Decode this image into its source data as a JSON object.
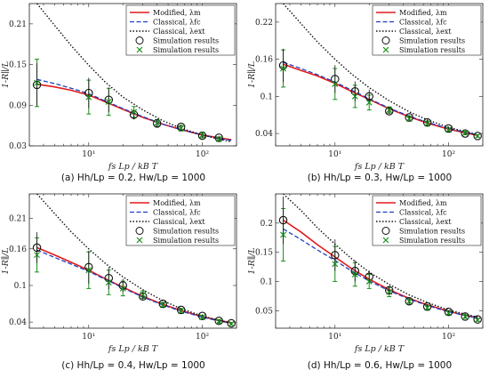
{
  "figure": {
    "legend": [
      "Modified, λm",
      "Classical, λfc",
      "Classical, λext",
      "Simulation results",
      "Simulation results"
    ],
    "colors": {
      "modified": "#e31a1c",
      "classical_fc": "#1f3fbf",
      "classical_ext": "#111111",
      "sim_black": "#111111",
      "sim_green": "#1a8f1a"
    }
  },
  "chart_data": [
    {
      "type": "line",
      "caption": "(a) Hh/Lp = 0.2, Hw/Lp = 1000",
      "xlabel": "fs Lp / kB T",
      "ylabel": "1-R∥/L",
      "xscale": "log",
      "xlim": [
        3,
        200
      ],
      "ylim": [
        0.03,
        0.24
      ],
      "xticks": [
        {
          "v": 10,
          "label": "10¹"
        },
        {
          "v": 100,
          "label": "10²"
        }
      ],
      "yticks": [
        {
          "v": 0.03,
          "label": "0.03"
        },
        {
          "v": 0.09,
          "label": "0.09"
        },
        {
          "v": 0.15,
          "label": "0.15"
        },
        {
          "v": 0.21,
          "label": "0.21"
        }
      ],
      "x": [
        3.5,
        5,
        7,
        10,
        14,
        20,
        30,
        45,
        65,
        100,
        140,
        180
      ],
      "series": [
        {
          "key": "modified",
          "values": [
            0.121,
            0.117,
            0.112,
            0.105,
            0.095,
            0.084,
            0.072,
            0.062,
            0.054,
            0.046,
            0.042,
            0.039
          ]
        },
        {
          "key": "classical_fc",
          "values": [
            0.128,
            0.122,
            0.115,
            0.107,
            0.096,
            0.085,
            0.073,
            0.062,
            0.054,
            0.046,
            0.041,
            0.038
          ]
        },
        {
          "key": "classical_ext",
          "values": [
            0.24,
            0.208,
            0.178,
            0.149,
            0.124,
            0.102,
            0.083,
            0.067,
            0.056,
            0.046,
            0.04,
            0.036
          ]
        }
      ],
      "sim": {
        "x": [
          3.5,
          10,
          15,
          25,
          40,
          65,
          100,
          140
        ],
        "circle": [
          0.12,
          0.108,
          0.098,
          0.076,
          0.063,
          0.058,
          0.045,
          0.042
        ],
        "cross": [
          0.123,
          0.102,
          0.095,
          0.08,
          0.064,
          0.056,
          0.046,
          0.04
        ],
        "err": [
          0.035,
          0.025,
          0.02,
          0.008,
          0.005,
          0.004,
          0.004,
          0.003
        ]
      }
    },
    {
      "type": "line",
      "caption": "(b) Hh/Lp = 0.3, Hw/Lp = 1000",
      "xlabel": "fs Lp / kB T",
      "ylabel": "1-R∥/L",
      "xscale": "log",
      "xlim": [
        3,
        200
      ],
      "ylim": [
        0.02,
        0.25
      ],
      "xticks": [
        {
          "v": 10,
          "label": "10¹"
        },
        {
          "v": 100,
          "label": "10²"
        }
      ],
      "yticks": [
        {
          "v": 0.04,
          "label": "0.04"
        },
        {
          "v": 0.1,
          "label": "0.1"
        },
        {
          "v": 0.16,
          "label": "0.16"
        },
        {
          "v": 0.22,
          "label": "0.22"
        }
      ],
      "x": [
        3.5,
        5,
        7,
        10,
        14,
        20,
        30,
        45,
        65,
        100,
        140,
        180
      ],
      "series": [
        {
          "key": "modified",
          "values": [
            0.152,
            0.142,
            0.133,
            0.121,
            0.108,
            0.095,
            0.08,
            0.067,
            0.057,
            0.047,
            0.041,
            0.037
          ]
        },
        {
          "key": "classical_fc",
          "values": [
            0.155,
            0.145,
            0.135,
            0.123,
            0.11,
            0.096,
            0.081,
            0.068,
            0.058,
            0.048,
            0.042,
            0.038
          ]
        },
        {
          "key": "classical_ext",
          "values": [
            0.25,
            0.218,
            0.188,
            0.16,
            0.136,
            0.114,
            0.093,
            0.075,
            0.062,
            0.05,
            0.043,
            0.038
          ]
        }
      ],
      "sim": {
        "x": [
          3.5,
          10,
          15,
          20,
          30,
          45,
          65,
          100,
          140,
          180
        ],
        "circle": [
          0.15,
          0.128,
          0.108,
          0.1,
          0.076,
          0.066,
          0.058,
          0.048,
          0.04,
          0.036
        ],
        "cross": [
          0.145,
          0.12,
          0.1,
          0.09,
          0.078,
          0.064,
          0.056,
          0.046,
          0.041,
          0.036
        ],
        "err": [
          0.03,
          0.025,
          0.018,
          0.012,
          0.005,
          0.004,
          0.004,
          0.003,
          0.003,
          0.002
        ]
      }
    },
    {
      "type": "line",
      "caption": "(c) Hh/Lp = 0.4, Hw/Lp = 1000",
      "xlabel": "fs Lp / kB T",
      "ylabel": "1-R∥/L",
      "xscale": "log",
      "xlim": [
        3,
        200
      ],
      "ylim": [
        0.03,
        0.25
      ],
      "xticks": [
        {
          "v": 10,
          "label": "10¹"
        },
        {
          "v": 100,
          "label": "10²"
        }
      ],
      "yticks": [
        {
          "v": 0.04,
          "label": "0.04"
        },
        {
          "v": 0.1,
          "label": "0.1"
        },
        {
          "v": 0.16,
          "label": "0.16"
        },
        {
          "v": 0.21,
          "label": "0.21"
        }
      ],
      "x": [
        3.5,
        5,
        7,
        10,
        14,
        20,
        30,
        45,
        65,
        100,
        140,
        180
      ],
      "series": [
        {
          "key": "modified",
          "values": [
            0.162,
            0.15,
            0.138,
            0.125,
            0.111,
            0.097,
            0.082,
            0.069,
            0.059,
            0.049,
            0.043,
            0.039
          ]
        },
        {
          "key": "classical_fc",
          "values": [
            0.158,
            0.146,
            0.135,
            0.123,
            0.11,
            0.096,
            0.081,
            0.068,
            0.058,
            0.048,
            0.042,
            0.038
          ]
        },
        {
          "key": "classical_ext",
          "values": [
            0.25,
            0.218,
            0.188,
            0.16,
            0.136,
            0.114,
            0.093,
            0.075,
            0.062,
            0.05,
            0.043,
            0.038
          ]
        }
      ],
      "sim": {
        "x": [
          3.5,
          10,
          15,
          20,
          30,
          45,
          65,
          100,
          140,
          180
        ],
        "circle": [
          0.162,
          0.13,
          0.112,
          0.1,
          0.082,
          0.07,
          0.06,
          0.05,
          0.042,
          0.038
        ],
        "cross": [
          0.15,
          0.125,
          0.105,
          0.095,
          0.085,
          0.068,
          0.058,
          0.048,
          0.041,
          0.037
        ],
        "err": [
          0.028,
          0.03,
          0.02,
          0.012,
          0.006,
          0.004,
          0.004,
          0.003,
          0.003,
          0.002
        ]
      }
    },
    {
      "type": "line",
      "caption": "(d) Hh/Lp = 0.6, Hw/Lp = 1000",
      "xlabel": "fs Lp / kB T",
      "ylabel": "1-R∥/L",
      "xscale": "log",
      "xlim": [
        3,
        200
      ],
      "ylim": [
        0.02,
        0.25
      ],
      "xticks": [
        {
          "v": 10,
          "label": "10¹"
        },
        {
          "v": 100,
          "label": "10²"
        }
      ],
      "yticks": [
        {
          "v": 0.05,
          "label": "0.05"
        },
        {
          "v": 0.1,
          "label": "0.1"
        },
        {
          "v": 0.15,
          "label": "0.15"
        },
        {
          "v": 0.2,
          "label": "0.2"
        }
      ],
      "x": [
        3.5,
        5,
        7,
        10,
        14,
        20,
        30,
        45,
        65,
        100,
        140,
        180
      ],
      "series": [
        {
          "key": "modified",
          "values": [
            0.205,
            0.185,
            0.163,
            0.142,
            0.122,
            0.104,
            0.086,
            0.071,
            0.06,
            0.049,
            0.042,
            0.038
          ]
        },
        {
          "key": "classical_fc",
          "values": [
            0.19,
            0.172,
            0.154,
            0.136,
            0.118,
            0.101,
            0.084,
            0.07,
            0.059,
            0.048,
            0.042,
            0.037
          ]
        },
        {
          "key": "classical_ext",
          "values": [
            0.25,
            0.222,
            0.192,
            0.164,
            0.139,
            0.116,
            0.095,
            0.077,
            0.064,
            0.051,
            0.044,
            0.039
          ]
        }
      ],
      "sim": {
        "x": [
          3.5,
          10,
          15,
          20,
          30,
          45,
          65,
          100,
          140,
          180
        ],
        "circle": [
          0.205,
          0.145,
          0.118,
          0.108,
          0.085,
          0.066,
          0.057,
          0.048,
          0.04,
          0.035
        ],
        "cross": [
          0.18,
          0.13,
          0.112,
          0.1,
          0.082,
          0.066,
          0.055,
          0.046,
          0.04,
          0.034
        ],
        "err": [
          0.045,
          0.03,
          0.02,
          0.012,
          0.008,
          0.005,
          0.004,
          0.003,
          0.003,
          0.002
        ]
      }
    }
  ]
}
